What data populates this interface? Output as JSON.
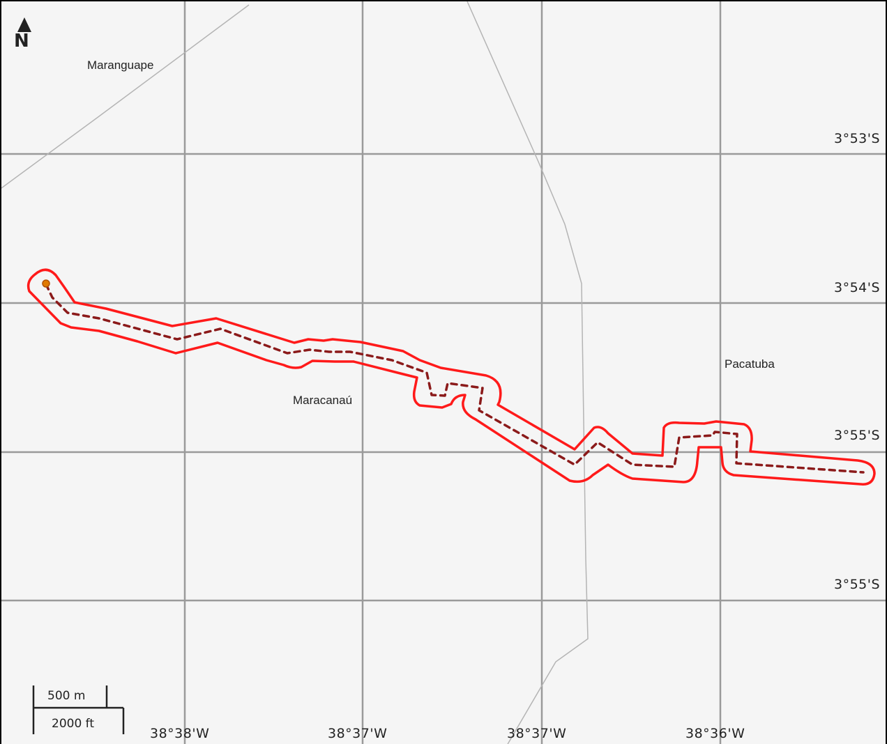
{
  "map": {
    "colors": {
      "background": "#f5f5f5",
      "grid": "#9a9a9a",
      "road": "#b4b4b4",
      "route_outline": "#ff1a1a",
      "route_center": "#8b1a1a",
      "start_marker": "#e07a00"
    },
    "north_arrow": {
      "letter": "N",
      "icon": "north-arrow-icon"
    },
    "places": [
      {
        "name": "Maranguape"
      },
      {
        "name": "Maracanaú"
      },
      {
        "name": "Pacatuba"
      }
    ],
    "latitude_labels": [
      "3°53'S",
      "3°54'S",
      "3°55'S",
      "3°55'S"
    ],
    "longitude_labels": [
      "38°38'W",
      "38°37'W",
      "38°37'W",
      "38°36'W"
    ],
    "scale_bar": {
      "metric": "500 m",
      "imperial": "2000 ft"
    }
  }
}
